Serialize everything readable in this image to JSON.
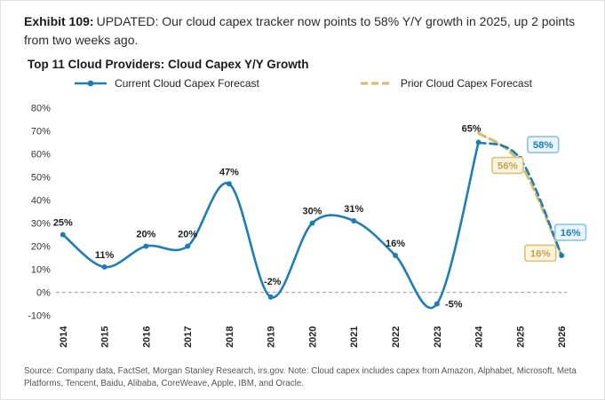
{
  "header": {
    "exhibit_label": "Exhibit 109:",
    "title": "UPDATED: Our cloud capex tracker now points to 58% Y/Y growth in 2025, up 2 points from two weeks ago."
  },
  "chart_data": {
    "type": "line",
    "title": "Top 11 Cloud Providers: Cloud Capex Y/Y Growth",
    "categories": [
      "2014",
      "2015",
      "2016",
      "2017",
      "2018",
      "2019",
      "2020",
      "2021",
      "2022",
      "2023",
      "2024",
      "2025",
      "2026"
    ],
    "series": [
      {
        "name": "Current Cloud Capex Forecast",
        "color": "#1d7db5",
        "style": "solid-then-dashed",
        "solid_points": 11,
        "values": [
          25,
          11,
          20,
          20,
          47,
          -2,
          30,
          31,
          16,
          -5,
          65,
          58,
          16
        ]
      },
      {
        "name": "Prior Cloud Capex Forecast",
        "color": "#d6bd74",
        "style": "dashed",
        "values": [
          null,
          null,
          null,
          null,
          null,
          null,
          null,
          null,
          null,
          null,
          69,
          56,
          16
        ]
      }
    ],
    "point_labels": [
      "25%",
      "11%",
      "20%",
      "20%",
      "47%",
      "-2%",
      "30%",
      "31%",
      "16%",
      "-5%",
      "65%",
      null,
      null
    ],
    "boxed_labels": [
      {
        "text": "58%",
        "series": "current",
        "year": "2025",
        "at_value": 64
      },
      {
        "text": "56%",
        "series": "prior",
        "year": "2025",
        "at_value": 55
      },
      {
        "text": "16%",
        "series": "current",
        "year": "2026",
        "at_value": 26
      },
      {
        "text": "16%",
        "series": "prior",
        "year": "2026",
        "at_value": 17
      }
    ],
    "ylim": [
      -10,
      80
    ],
    "ytick_step": 10,
    "y_tick_suffix": "%",
    "grid": "zero-line-dashed-only",
    "legend_position": "top",
    "colors": {
      "current": "#1d7db5",
      "prior": "#d6bd74",
      "current_box_fill": "#eaf5fb",
      "current_box_stroke": "#8cc4de",
      "current_box_text": "#1d7db5",
      "prior_box_fill": "#faf4df",
      "prior_box_stroke": "#d9c178",
      "prior_box_text": "#c3a34f",
      "point_label_text": "#1d1d1d"
    }
  },
  "source_note": "Source: Company data, FactSet, Morgan Stanley Research, irs.gov. Note: Cloud capex includes capex from Amazon, Alphabet, Microsoft, Meta Platforms, Tencent, Baidu, Alibaba, CoreWeave, Apple, IBM, and Oracle."
}
